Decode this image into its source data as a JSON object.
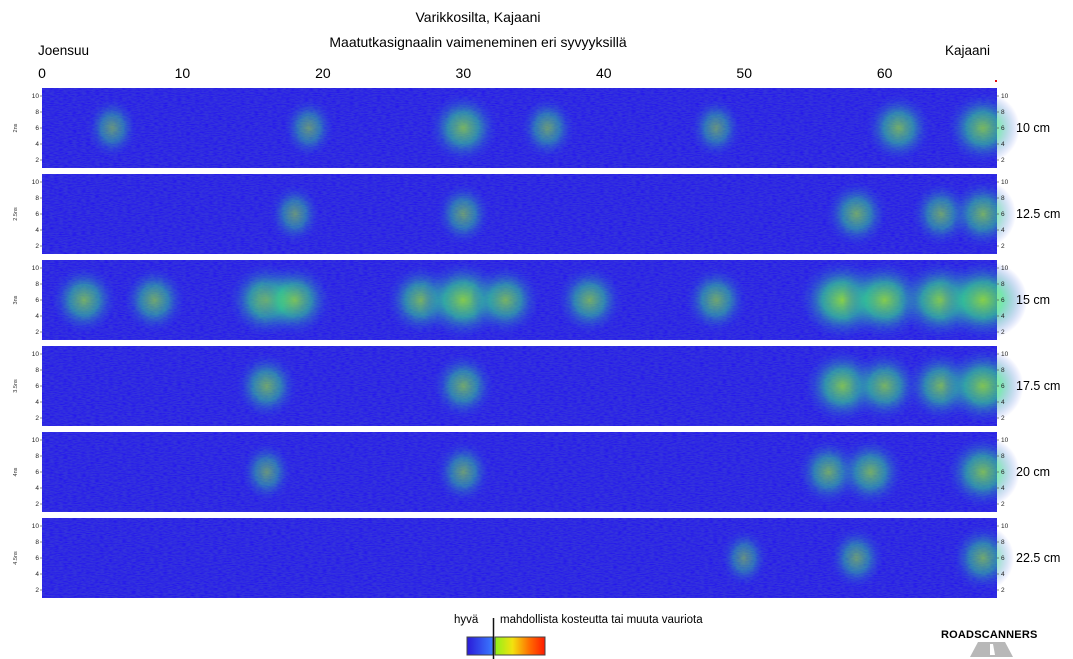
{
  "chart_data": {
    "type": "heatmap",
    "title": "Varikkosilta, Kajaani",
    "subtitle": "Maatutkasignaalin vaimeneminen eri syvyyksillä",
    "start_label": "Joensuu",
    "end_label": "Kajaani",
    "x_ticks": [
      "0",
      "10",
      "20",
      "30",
      "40",
      "50",
      "60"
    ],
    "xlim": [
      0,
      68
    ],
    "y_ticks": [
      "2",
      "4",
      "6",
      "8",
      "10"
    ],
    "ylim": [
      1,
      11
    ],
    "panels": [
      {
        "time_label": "2ns",
        "depth_label": "10 cm",
        "hotspots": [
          [
            30,
            0.55
          ],
          [
            61,
            0.5
          ],
          [
            5,
            0.3
          ],
          [
            19,
            0.3
          ],
          [
            36,
            0.35
          ],
          [
            48,
            0.3
          ],
          [
            67,
            0.6
          ]
        ]
      },
      {
        "time_label": "2.5ns",
        "depth_label": "12.5 cm",
        "hotspots": [
          [
            18,
            0.3
          ],
          [
            30,
            0.35
          ],
          [
            58,
            0.45
          ],
          [
            64,
            0.4
          ],
          [
            67,
            0.5
          ]
        ]
      },
      {
        "time_label": "3ns",
        "depth_label": "15 cm",
        "hotspots": [
          [
            3,
            0.5
          ],
          [
            8,
            0.45
          ],
          [
            16,
            0.65
          ],
          [
            18,
            0.6
          ],
          [
            27,
            0.55
          ],
          [
            30,
            0.75
          ],
          [
            33,
            0.55
          ],
          [
            39,
            0.5
          ],
          [
            48,
            0.45
          ],
          [
            57,
            0.8
          ],
          [
            60,
            0.75
          ],
          [
            64,
            0.75
          ],
          [
            67,
            0.8
          ]
        ]
      },
      {
        "time_label": "3.5ns",
        "depth_label": "17.5 cm",
        "hotspots": [
          [
            16,
            0.45
          ],
          [
            30,
            0.45
          ],
          [
            57,
            0.65
          ],
          [
            60,
            0.55
          ],
          [
            64,
            0.55
          ],
          [
            67,
            0.7
          ]
        ]
      },
      {
        "time_label": "4ns",
        "depth_label": "20 cm",
        "hotspots": [
          [
            16,
            0.3
          ],
          [
            30,
            0.35
          ],
          [
            56,
            0.45
          ],
          [
            59,
            0.5
          ],
          [
            67,
            0.6
          ]
        ]
      },
      {
        "time_label": "4.5ns",
        "depth_label": "22.5 cm",
        "hotspots": [
          [
            50,
            0.25
          ],
          [
            58,
            0.35
          ],
          [
            67,
            0.45
          ]
        ]
      }
    ]
  },
  "legend": {
    "good_label": "hyvä",
    "damage_label": "mahdollista kosteutta tai muuta vauriota",
    "colors": [
      "#2a1ad8",
      "#3a7bff",
      "#22d6a0",
      "#8ef01a",
      "#f2e20f",
      "#ff6a00",
      "#ff1a00"
    ]
  },
  "logo": {
    "text": "ROADSCANNERS"
  }
}
